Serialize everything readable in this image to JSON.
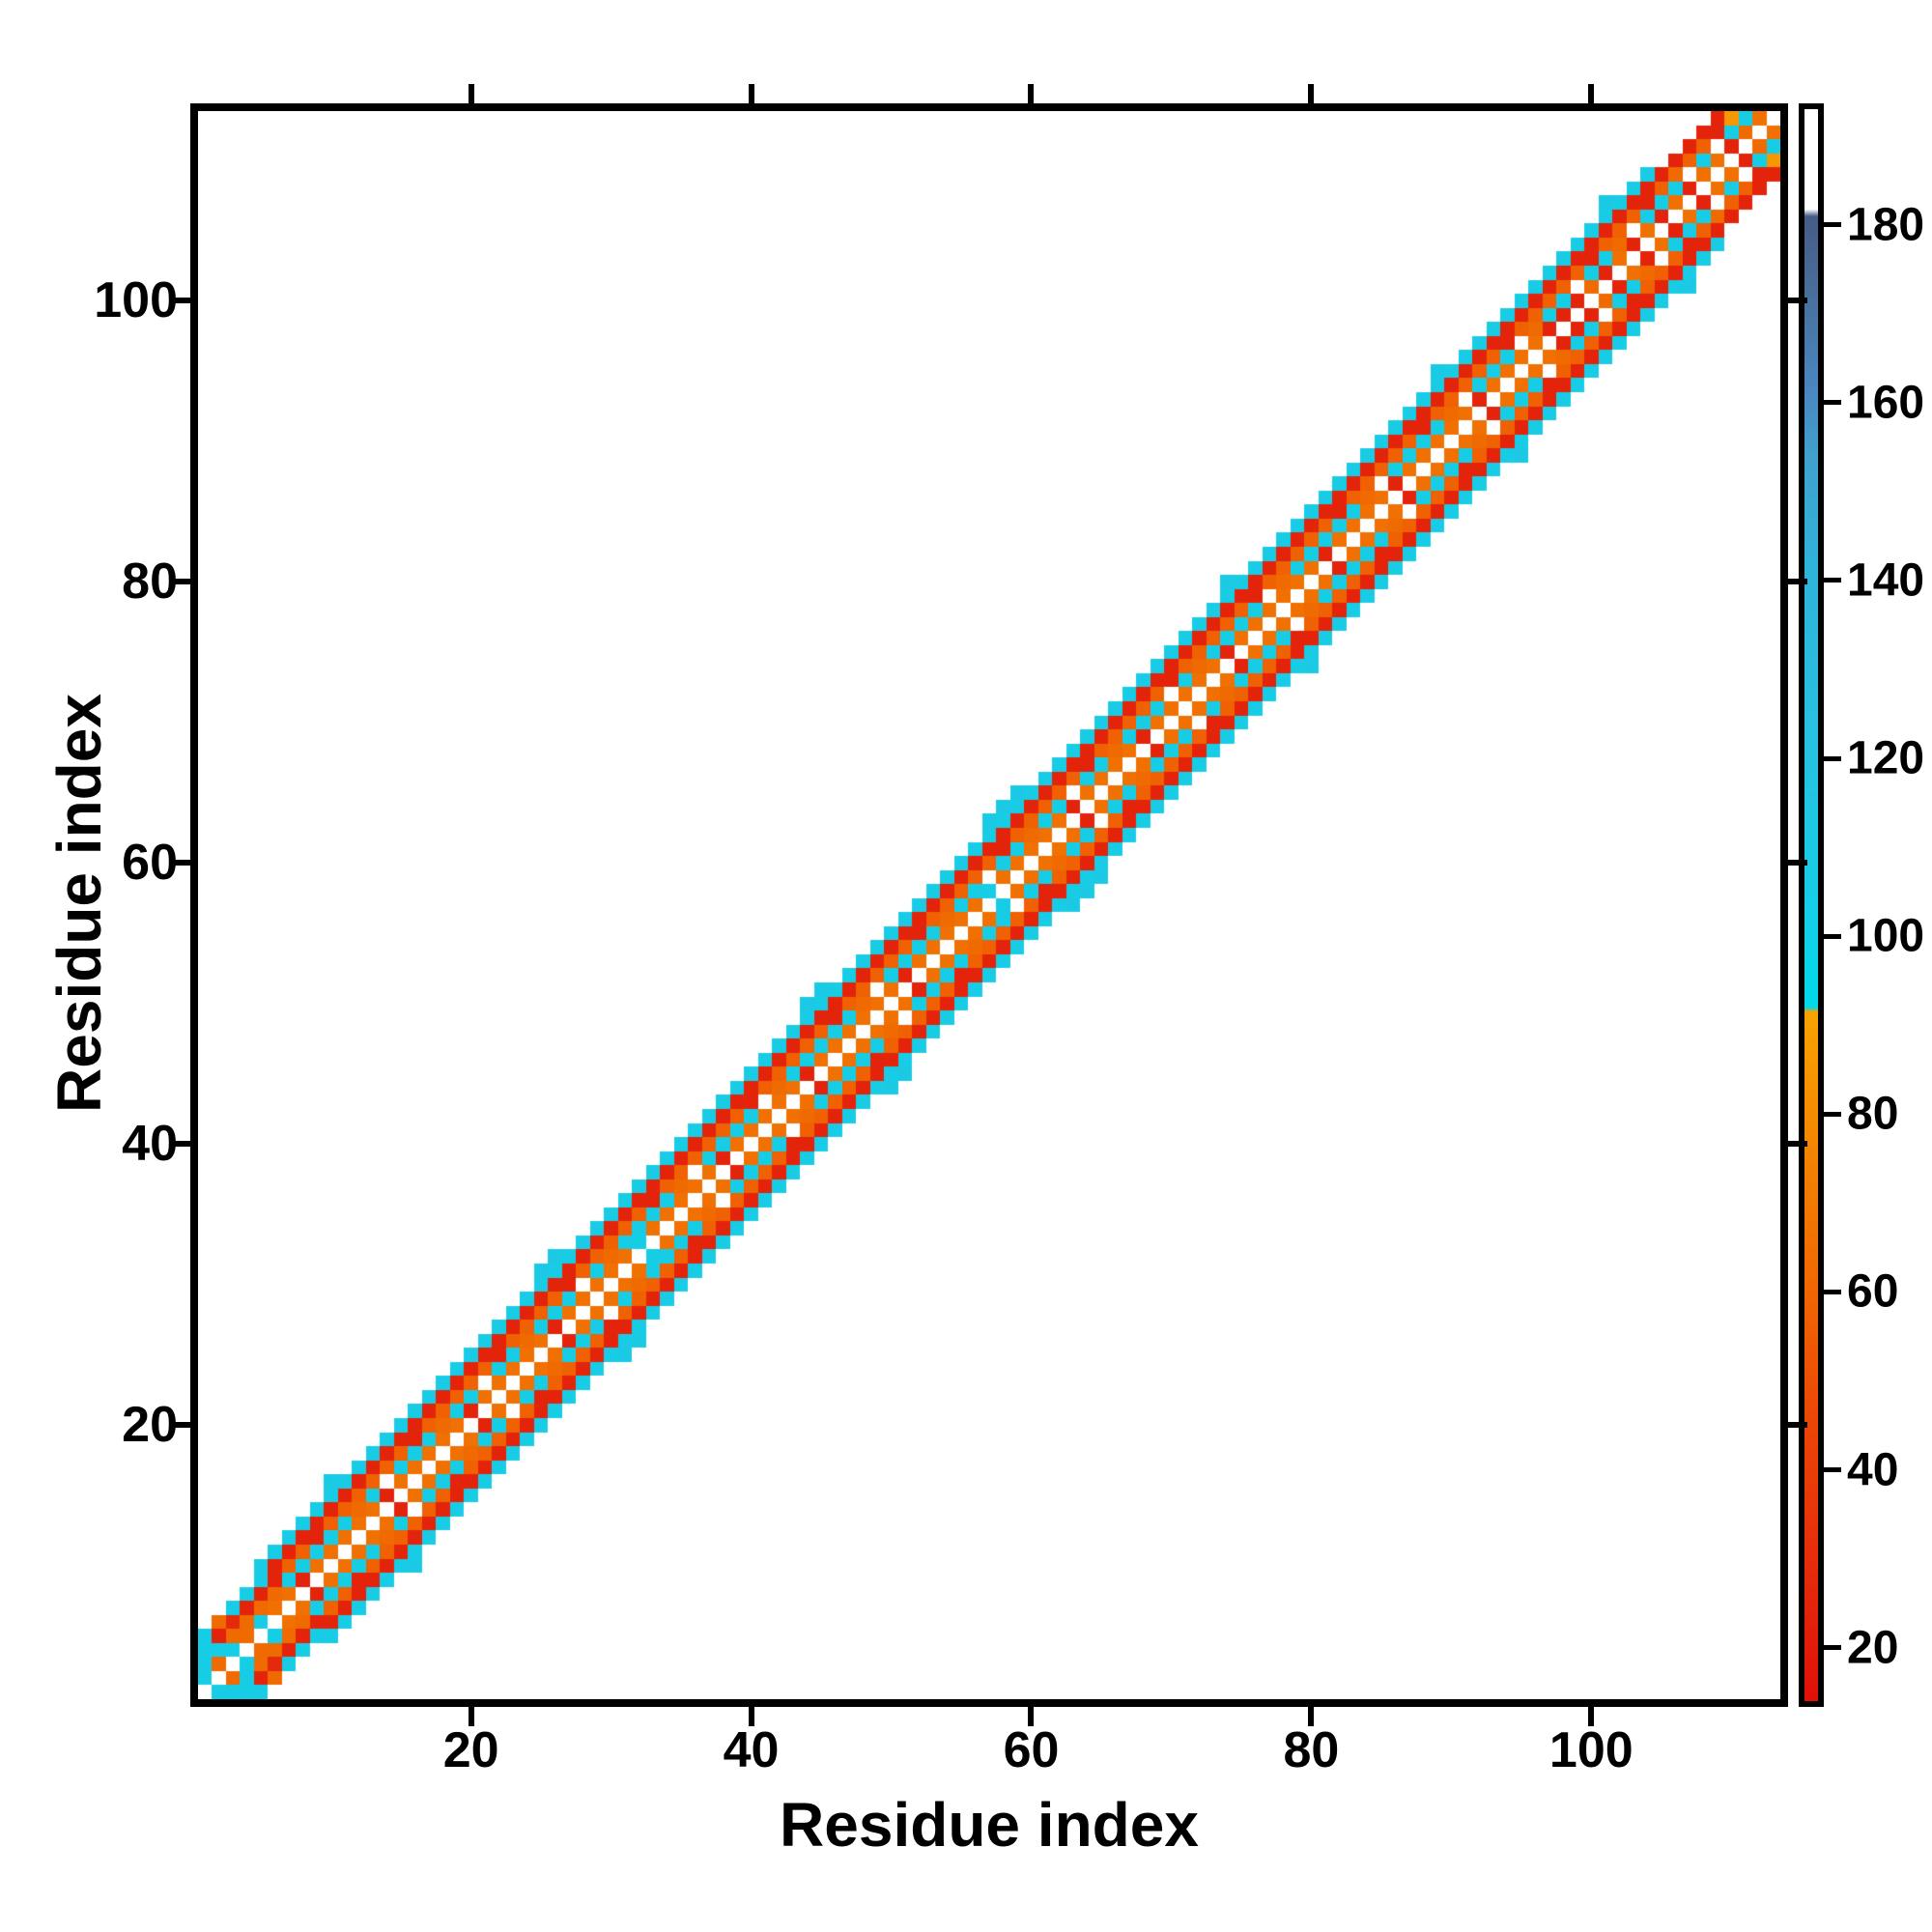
{
  "chart_data": {
    "type": "heatmap",
    "title": "",
    "xlabel": "Residue index",
    "ylabel": "Residue index",
    "n_residues": 113,
    "axis_range": [
      0.5,
      113.5
    ],
    "x_ticks": [
      20,
      40,
      60,
      80,
      100
    ],
    "y_ticks": [
      20,
      40,
      60,
      80,
      100
    ],
    "grid": false,
    "legend": "colorbar-right",
    "colorbar": {
      "ticks": [
        20,
        40,
        60,
        80,
        100,
        120,
        140,
        160,
        180
      ],
      "vmin": 14,
      "vmax": 193,
      "stops": [
        [
          14,
          "#df1008"
        ],
        [
          28,
          "#e52a0b"
        ],
        [
          45,
          "#eb4506"
        ],
        [
          62,
          "#f06a02"
        ],
        [
          78,
          "#f48800"
        ],
        [
          91.5,
          "#f8a300"
        ],
        [
          92,
          "#00d9e9"
        ],
        [
          102,
          "#14cfe7"
        ],
        [
          122,
          "#27c1e1"
        ],
        [
          142,
          "#2fb3d9"
        ],
        [
          154,
          "#41a0cd"
        ],
        [
          162,
          "#4a85bf"
        ],
        [
          172,
          "#48709c"
        ],
        [
          181,
          "#465c86"
        ],
        [
          181.8,
          "#ffffff"
        ],
        [
          193,
          "#ffffff"
        ]
      ]
    },
    "band": {
      "masked_diagonal": true,
      "offset_values": {
        "1": 65,
        "2": 105,
        "3": 58,
        "4": 24,
        "5": 107
      },
      "offset5_min_i": 5,
      "offset5_max_i": 104
    },
    "deviations": [
      [
        1,
        2,
        105
      ],
      [
        1,
        3,
        105
      ],
      [
        1,
        4,
        105
      ],
      [
        1,
        5,
        105
      ],
      [
        2,
        3,
        62
      ],
      [
        2,
        4,
        105
      ],
      [
        2,
        5,
        24
      ],
      [
        2,
        6,
        62
      ],
      [
        3,
        4,
        105
      ],
      [
        3,
        5,
        62
      ],
      [
        3,
        6,
        28
      ],
      [
        3,
        7,
        105
      ],
      [
        4,
        5,
        62
      ],
      [
        4,
        6,
        62
      ],
      [
        4,
        7,
        24
      ],
      [
        4,
        8,
        105
      ],
      [
        5,
        6,
        105
      ],
      [
        5,
        7,
        62
      ],
      [
        5,
        8,
        24
      ],
      [
        5,
        9,
        105
      ],
      [
        6,
        8,
        62
      ],
      [
        6,
        9,
        24
      ],
      [
        8,
        9,
        24
      ],
      [
        9,
        12,
        24
      ],
      [
        12,
        14,
        62
      ],
      [
        14,
        15,
        24
      ],
      [
        16,
        19,
        24
      ],
      [
        18,
        20,
        62
      ],
      [
        20,
        21,
        24
      ],
      [
        22,
        25,
        24
      ],
      [
        24,
        26,
        62
      ],
      [
        26,
        27,
        24
      ],
      [
        27,
        30,
        24
      ],
      [
        30,
        32,
        62
      ],
      [
        32,
        33,
        105
      ],
      [
        33,
        36,
        24
      ],
      [
        35,
        37,
        62
      ],
      [
        38,
        39,
        24
      ],
      [
        40,
        43,
        24
      ],
      [
        42,
        44,
        62
      ],
      [
        44,
        45,
        24
      ],
      [
        46,
        49,
        24
      ],
      [
        48,
        50,
        62
      ],
      [
        51,
        52,
        24
      ],
      [
        52,
        55,
        24
      ],
      [
        54,
        56,
        62
      ],
      [
        57,
        58,
        105
      ],
      [
        58,
        61,
        24
      ],
      [
        60,
        62,
        62
      ],
      [
        63,
        64,
        24
      ],
      [
        64,
        67,
        24
      ],
      [
        66,
        68,
        62
      ],
      [
        68,
        69,
        24
      ],
      [
        70,
        73,
        24
      ],
      [
        72,
        74,
        62
      ],
      [
        74,
        75,
        24
      ],
      [
        76,
        79,
        24
      ],
      [
        78,
        80,
        62
      ],
      [
        81,
        82,
        24
      ],
      [
        82,
        85,
        24
      ],
      [
        84,
        86,
        62
      ],
      [
        86,
        87,
        24
      ],
      [
        88,
        91,
        24
      ],
      [
        90,
        92,
        62
      ],
      [
        92,
        93,
        24
      ],
      [
        94,
        97,
        24
      ],
      [
        96,
        98,
        62
      ],
      [
        97,
        98,
        24
      ],
      [
        98,
        99,
        24
      ],
      [
        99,
        100,
        24
      ],
      [
        100,
        101,
        62
      ],
      [
        100,
        103,
        24
      ],
      [
        101,
        102,
        24
      ],
      [
        102,
        104,
        62
      ],
      [
        103,
        104,
        24
      ],
      [
        104,
        107,
        24
      ],
      [
        105,
        106,
        24
      ],
      [
        106,
        109,
        62
      ],
      [
        107,
        108,
        24
      ],
      [
        109,
        112,
        24
      ],
      [
        110,
        111,
        24
      ],
      [
        110,
        113,
        86
      ],
      [
        111,
        112,
        62
      ]
    ],
    "masked_cells": [
      [
        14,
        16
      ],
      [
        21,
        23
      ],
      [
        28,
        30
      ],
      [
        36,
        38
      ],
      [
        41,
        43
      ],
      [
        49,
        51
      ],
      [
        57,
        59
      ],
      [
        63,
        65
      ],
      [
        70,
        72
      ],
      [
        77,
        79
      ],
      [
        85,
        87
      ],
      [
        91,
        93
      ],
      [
        95,
        97
      ],
      [
        99,
        101
      ],
      [
        103,
        105
      ],
      [
        107,
        109
      ],
      [
        109,
        111
      ]
    ],
    "extra_cells": [
      [
        10,
        16,
        110
      ],
      [
        25,
        31,
        110
      ],
      [
        26,
        32,
        110
      ],
      [
        44,
        50,
        110
      ],
      [
        45,
        51,
        110
      ],
      [
        57,
        63,
        110
      ],
      [
        58,
        64,
        110
      ],
      [
        59,
        65,
        110
      ],
      [
        74,
        80,
        110
      ],
      [
        89,
        95,
        110
      ],
      [
        101,
        107,
        110
      ]
    ]
  }
}
